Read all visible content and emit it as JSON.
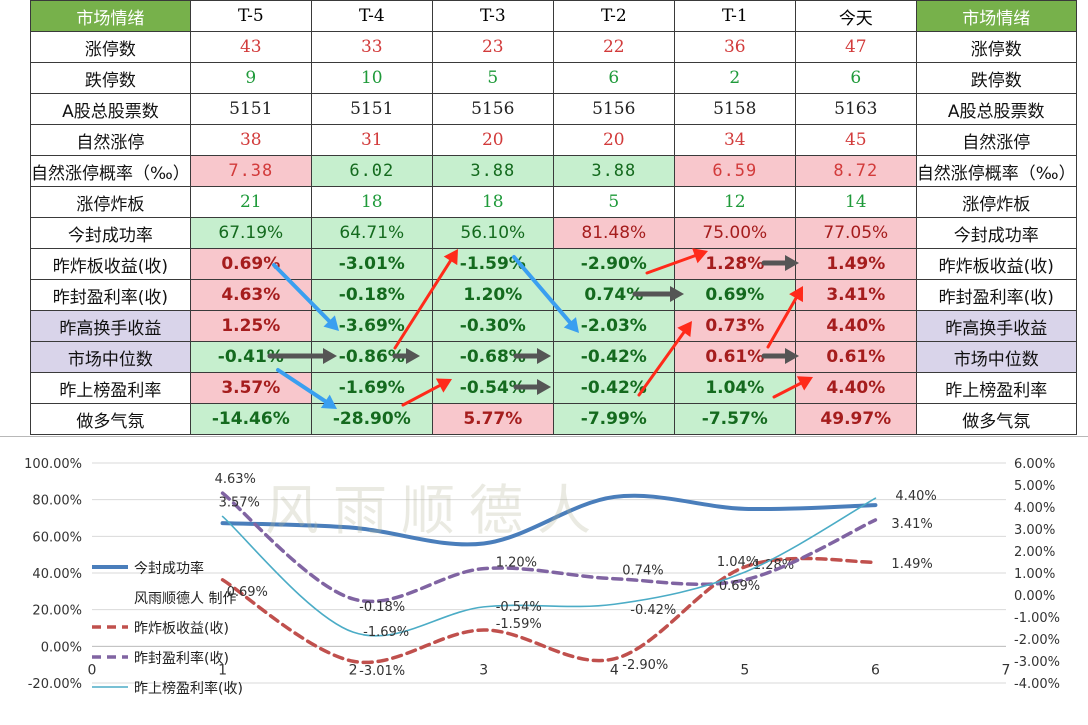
{
  "table": {
    "header": [
      "市场情绪",
      "T-5",
      "T-4",
      "T-3",
      "T-2",
      "T-1",
      "今天",
      "市场情绪"
    ],
    "rows": [
      {
        "label": "涨停数",
        "values": [
          "43",
          "33",
          "23",
          "22",
          "36",
          "47"
        ]
      },
      {
        "label": "跌停数",
        "values": [
          "9",
          "10",
          "5",
          "6",
          "2",
          "6"
        ]
      },
      {
        "label": "A股总股票数",
        "values": [
          "5151",
          "5151",
          "5156",
          "5156",
          "5158",
          "5163"
        ]
      },
      {
        "label": "自然涨停",
        "values": [
          "38",
          "31",
          "20",
          "20",
          "34",
          "45"
        ]
      },
      {
        "label": "自然涨停概率（‰）",
        "values": [
          "7.38",
          "6.02",
          "3.88",
          "3.88",
          "6.59",
          "8.72"
        ]
      },
      {
        "label": "涨停炸板",
        "values": [
          "21",
          "18",
          "18",
          "5",
          "12",
          "14"
        ]
      },
      {
        "label": "今封成功率",
        "values": [
          "67.19%",
          "64.71%",
          "56.10%",
          "81.48%",
          "75.00%",
          "77.05%"
        ]
      },
      {
        "label": "昨炸板收益(收)",
        "values": [
          "0.69%",
          "-3.01%",
          "-1.59%",
          "-2.90%",
          "1.28%",
          "1.49%"
        ]
      },
      {
        "label": "昨封盈利率(收)",
        "values": [
          "4.63%",
          "-0.18%",
          "1.20%",
          "0.74%",
          "0.69%",
          "3.41%"
        ]
      },
      {
        "label": "昨高换手收益",
        "values": [
          "1.25%",
          "-3.69%",
          "-0.30%",
          "-2.03%",
          "0.73%",
          "4.40%"
        ]
      },
      {
        "label": "市场中位数",
        "values": [
          "-0.41%",
          "-0.86%",
          "-0.68%",
          "-0.42%",
          "0.61%",
          "0.61%"
        ]
      },
      {
        "label": "昨上榜盈利率",
        "values": [
          "3.57%",
          "-1.69%",
          "-0.54%",
          "-0.42%",
          "1.04%",
          "4.40%"
        ]
      },
      {
        "label": "做多气氛",
        "values": [
          "-14.46%",
          "-28.90%",
          "5.77%",
          "-7.99%",
          "-7.57%",
          "49.97%"
        ]
      }
    ]
  },
  "watermark": "风雨顺德人",
  "colors": {
    "header_green": "#77b14b",
    "pink_fill": "#f8c7cc",
    "green_fill": "#c6efce",
    "purple_fill": "#d9d4ea",
    "arrow_red": "#ff2a1a",
    "arrow_blue": "#3a9ff0",
    "arrow_gray": "#555555"
  },
  "chart_data": {
    "type": "line",
    "x": [
      1,
      2,
      3,
      4,
      5,
      6
    ],
    "xlim": [
      0,
      7
    ],
    "xticks": [
      "0",
      "1",
      "2",
      "3",
      "4",
      "5",
      "6",
      "7"
    ],
    "ylim_left": [
      -20,
      100
    ],
    "yticks_left": [
      "100.00%",
      "80.00%",
      "60.00%",
      "40.00%",
      "20.00%",
      "0.00%",
      "-20.00%"
    ],
    "ylim_right": [
      -4,
      6
    ],
    "yticks_right": [
      "6.00%",
      "5.00%",
      "4.00%",
      "3.00%",
      "2.00%",
      "1.00%",
      "0.00%",
      "-1.00%",
      "-2.00%",
      "-3.00%",
      "-4.00%"
    ],
    "grid": "horizontal",
    "legend_position": "left",
    "legend_note": "风雨顺德人 制作",
    "series": [
      {
        "name": "今封成功率",
        "axis": "left",
        "style": "solid-thick",
        "color": "#4a7ebb",
        "values": [
          67.19,
          64.71,
          56.1,
          81.48,
          75.0,
          77.05
        ]
      },
      {
        "name": "昨炸板收益(收)",
        "axis": "right",
        "style": "dashed",
        "color": "#c0504d",
        "values": [
          0.69,
          -3.01,
          -1.59,
          -2.9,
          1.28,
          1.49
        ],
        "labels": [
          "0.69%",
          "-3.01%",
          "-1.59%",
          "-2.90%",
          "1.28%",
          "1.49%"
        ]
      },
      {
        "name": "昨封盈利率(收)",
        "axis": "right",
        "style": "dashed",
        "color": "#8064a2",
        "values": [
          4.63,
          -0.18,
          1.2,
          0.74,
          0.69,
          3.41
        ],
        "labels": [
          "4.63%",
          "-0.18%",
          "1.20%",
          "0.74%",
          "0.69%",
          "3.41%"
        ]
      },
      {
        "name": "昨上榜盈利率(收)",
        "axis": "right",
        "style": "solid-thin",
        "color": "#4bacc6",
        "values": [
          3.57,
          -1.69,
          -0.54,
          -0.42,
          1.04,
          4.4
        ],
        "labels": [
          "3.57%",
          "-1.69%",
          "-0.54%",
          "-0.42%",
          "1.04%",
          "4.40%"
        ]
      }
    ]
  }
}
